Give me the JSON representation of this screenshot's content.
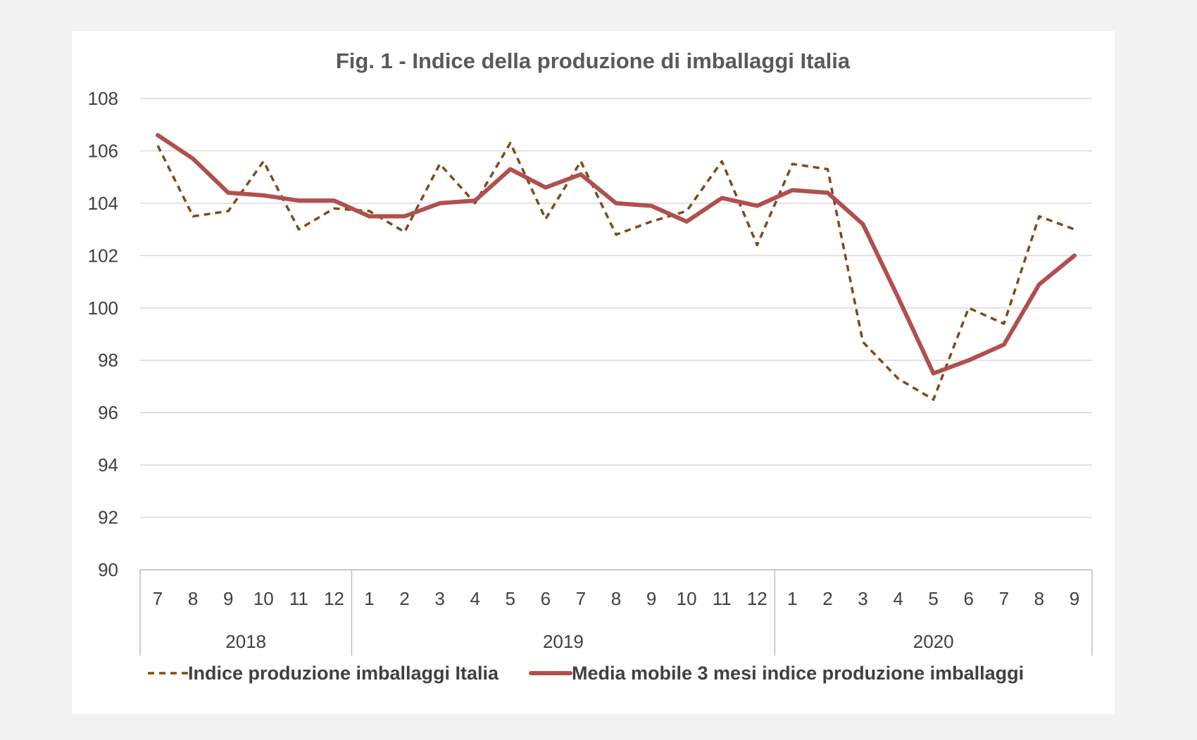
{
  "chart_data": {
    "type": "line",
    "title": "Fig. 1 - Indice della produzione di imballaggi Italia",
    "xlabel": "",
    "ylabel": "",
    "ylim": [
      90,
      108
    ],
    "yticks": [
      90,
      92,
      94,
      96,
      98,
      100,
      102,
      104,
      106,
      108
    ],
    "grid": true,
    "legend_position": "bottom",
    "categories": [
      "7",
      "8",
      "9",
      "10",
      "11",
      "12",
      "1",
      "2",
      "3",
      "4",
      "5",
      "6",
      "7",
      "8",
      "9",
      "10",
      "11",
      "12",
      "1",
      "2",
      "3",
      "4",
      "5",
      "6",
      "7",
      "8",
      "9"
    ],
    "year_groups": [
      {
        "label": "2018",
        "start": 0,
        "count": 6
      },
      {
        "label": "2019",
        "start": 6,
        "count": 12
      },
      {
        "label": "2020",
        "start": 18,
        "count": 9
      }
    ],
    "series": [
      {
        "name": "Indice produzione imballaggi Italia",
        "color": "#7f4b16",
        "style": "dashed",
        "values": [
          106.2,
          103.5,
          103.7,
          105.6,
          103.0,
          103.8,
          103.7,
          102.9,
          105.5,
          104.0,
          106.3,
          103.4,
          105.6,
          102.8,
          103.3,
          103.7,
          105.6,
          102.4,
          105.5,
          105.3,
          98.7,
          97.3,
          96.5,
          100.0,
          99.4,
          103.5,
          103.0
        ]
      },
      {
        "name": "Media mobile 3 mesi indice produzione imballaggi",
        "color": "#b0504e",
        "style": "solid",
        "values": [
          106.6,
          105.7,
          104.4,
          104.3,
          104.1,
          104.1,
          103.5,
          103.5,
          104.0,
          104.1,
          105.3,
          104.6,
          105.1,
          104.0,
          103.9,
          103.3,
          104.2,
          103.9,
          104.5,
          104.4,
          103.2,
          100.4,
          97.5,
          98.0,
          98.6,
          100.9,
          102.0
        ]
      }
    ]
  }
}
